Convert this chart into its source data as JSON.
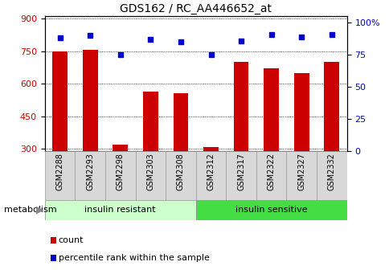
{
  "title": "GDS162 / RC_AA446652_at",
  "categories": [
    "GSM2288",
    "GSM2293",
    "GSM2298",
    "GSM2303",
    "GSM2308",
    "GSM2312",
    "GSM2317",
    "GSM2322",
    "GSM2327",
    "GSM2332"
  ],
  "counts": [
    750,
    755,
    320,
    565,
    555,
    310,
    700,
    670,
    650,
    700
  ],
  "percentile_display": [
    88,
    90,
    75,
    87,
    85,
    75,
    86,
    91,
    89,
    91
  ],
  "ylim_left": [
    290,
    910
  ],
  "ylim_right": [
    0,
    105
  ],
  "yticks_left": [
    300,
    450,
    600,
    750,
    900
  ],
  "yticks_right": [
    0,
    25,
    50,
    75,
    100
  ],
  "bar_color": "#cc0000",
  "dot_color": "#0000cc",
  "group1_label": "insulin resistant",
  "group2_label": "insulin sensitive",
  "group1_color": "#ccffcc",
  "group2_color": "#44dd44",
  "metabolism_label": "metabolism",
  "legend_count": "count",
  "legend_percentile": "percentile rank within the sample",
  "bar_width": 0.5,
  "base_value": 290,
  "tickbox_color": "#d8d8d8",
  "n_group1": 5,
  "n_group2": 5
}
